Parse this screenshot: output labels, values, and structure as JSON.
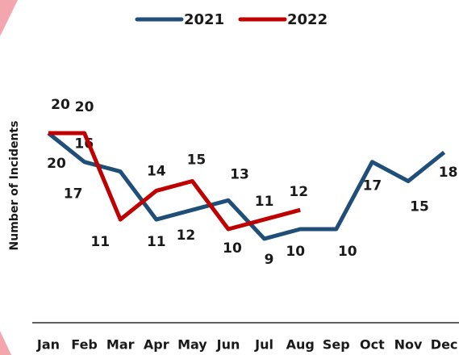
{
  "chart_data": {
    "type": "line",
    "y_axis_label": "Number of Incidents",
    "categories": [
      "Jan",
      "Feb",
      "Mar",
      "Apr",
      "May",
      "Jun",
      "Jul",
      "Aug",
      "Sep",
      "Oct",
      "Nov",
      "Dec"
    ],
    "ylim": [
      5,
      25
    ],
    "series": [
      {
        "name": "2021",
        "color": "#1f4e79",
        "values": [
          20,
          17,
          16,
          11,
          12,
          13,
          9,
          10,
          10,
          17,
          15,
          18
        ]
      },
      {
        "name": "2022",
        "color": "#c00000",
        "values": [
          20,
          20,
          11,
          14,
          15,
          10,
          11,
          12,
          null,
          null,
          null,
          null
        ]
      }
    ]
  }
}
